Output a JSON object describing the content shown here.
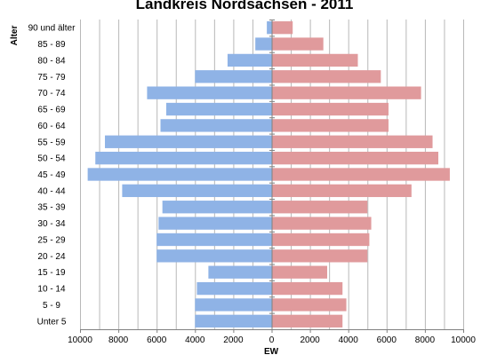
{
  "chart_data": {
    "type": "bar",
    "orientation": "horizontal",
    "title": "Landkreis Nordsachsen - 2011",
    "ylabel": "Alter",
    "xlabel": "EW",
    "categories": [
      "90 und älter",
      "85 - 89",
      "80 - 84",
      "75 - 79",
      "70 - 74",
      "65 - 69",
      "60 - 64",
      "55 - 59",
      "50 - 54",
      "45 - 49",
      "40 - 44",
      "35 - 39",
      "30 - 34",
      "25 - 29",
      "20 - 24",
      "15 - 19",
      "10 - 14",
      "5 - 9",
      "Unter 5"
    ],
    "series": [
      {
        "color": "#8fb3e6",
        "side": "left",
        "values": [
          250,
          850,
          2300,
          4000,
          6500,
          5500,
          5800,
          8700,
          9200,
          9600,
          7800,
          5700,
          5900,
          6000,
          6000,
          3300,
          3900,
          4000,
          4000
        ]
      },
      {
        "color": "#e09a9c",
        "side": "right",
        "values": [
          1100,
          2700,
          4500,
          5700,
          7800,
          6100,
          6100,
          8400,
          8700,
          9300,
          7300,
          5000,
          5200,
          5100,
          5000,
          2900,
          3700,
          3900,
          3700
        ]
      }
    ],
    "xlim": [
      -10000,
      10000
    ],
    "xticks": [
      -10000,
      -8000,
      -6000,
      -4000,
      -2000,
      0,
      2000,
      4000,
      6000,
      8000,
      10000
    ],
    "xtick_labels": [
      "10000",
      "8000",
      "6000",
      "4000",
      "2000",
      "0",
      "2000",
      "4000",
      "6000",
      "8000",
      "10000"
    ],
    "grid": true,
    "grid_color": "#b8b8b8",
    "axis_color": "#808080"
  }
}
